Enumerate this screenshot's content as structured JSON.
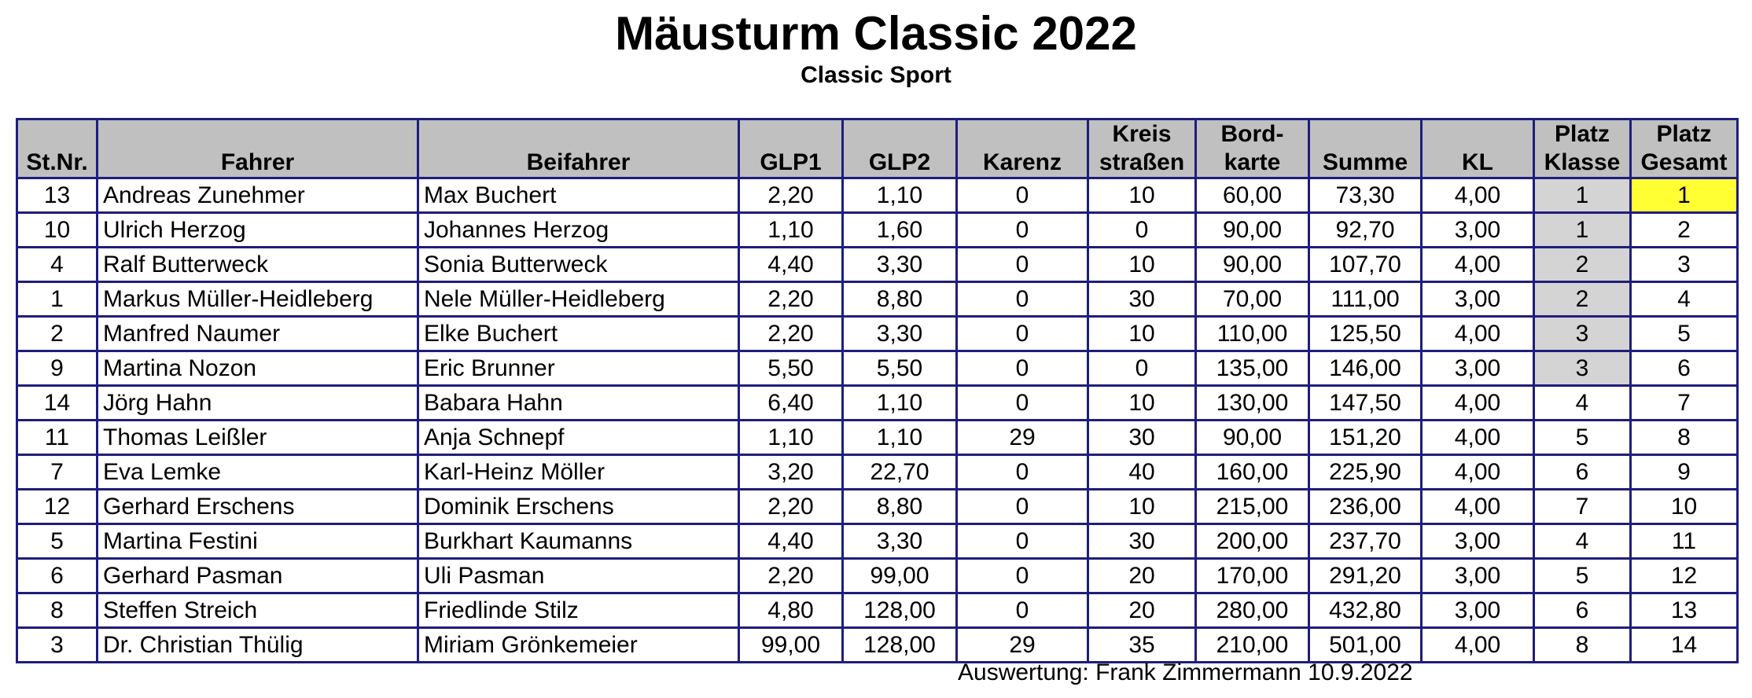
{
  "title": "Mäusturm Classic 2022",
  "subtitle": "Classic Sport",
  "headers": {
    "stnr": "St.Nr.",
    "fahrer": "Fahrer",
    "beifahrer": "Beifahrer",
    "glp1": "GLP1",
    "glp2": "GLP2",
    "karenz": "Karenz",
    "kreis_1": "Kreis",
    "kreis_2": "straßen",
    "bord_1": "Bord-",
    "bord_2": "karte",
    "summe": "Summe",
    "kl": "KL",
    "platz_klasse_1": "Platz",
    "platz_klasse_2": "Klasse",
    "platz_gesamt_1": "Platz",
    "platz_gesamt_2": "Gesamt"
  },
  "rows": [
    {
      "stnr": "13",
      "fahrer": "Andreas Zunehmer",
      "beifahrer": "Max Buchert",
      "glp1": "2,20",
      "glp2": "1,10",
      "karenz": "0",
      "kreis": "10",
      "bordkarte": "60,00",
      "summe": "73,30",
      "kl": "4,00",
      "platz_klasse": "1",
      "platz_gesamt": "1"
    },
    {
      "stnr": "10",
      "fahrer": "Ulrich Herzog",
      "beifahrer": "Johannes Herzog",
      "glp1": "1,10",
      "glp2": "1,60",
      "karenz": "0",
      "kreis": "0",
      "bordkarte": "90,00",
      "summe": "92,70",
      "kl": "3,00",
      "platz_klasse": "1",
      "platz_gesamt": "2"
    },
    {
      "stnr": "4",
      "fahrer": "Ralf Butterweck",
      "beifahrer": "Sonia Butterweck",
      "glp1": "4,40",
      "glp2": "3,30",
      "karenz": "0",
      "kreis": "10",
      "bordkarte": "90,00",
      "summe": "107,70",
      "kl": "4,00",
      "platz_klasse": "2",
      "platz_gesamt": "3"
    },
    {
      "stnr": "1",
      "fahrer": "Markus Müller-Heidleberg",
      "beifahrer": "Nele Müller-Heidleberg",
      "glp1": "2,20",
      "glp2": "8,80",
      "karenz": "0",
      "kreis": "30",
      "bordkarte": "70,00",
      "summe": "111,00",
      "kl": "3,00",
      "platz_klasse": "2",
      "platz_gesamt": "4"
    },
    {
      "stnr": "2",
      "fahrer": "Manfred Naumer",
      "beifahrer": "Elke Buchert",
      "glp1": "2,20",
      "glp2": "3,30",
      "karenz": "0",
      "kreis": "10",
      "bordkarte": "110,00",
      "summe": "125,50",
      "kl": "4,00",
      "platz_klasse": "3",
      "platz_gesamt": "5"
    },
    {
      "stnr": "9",
      "fahrer": "Martina Nozon",
      "beifahrer": "Eric Brunner",
      "glp1": "5,50",
      "glp2": "5,50",
      "karenz": "0",
      "kreis": "0",
      "bordkarte": "135,00",
      "summe": "146,00",
      "kl": "3,00",
      "platz_klasse": "3",
      "platz_gesamt": "6"
    },
    {
      "stnr": "14",
      "fahrer": "Jörg Hahn",
      "beifahrer": "Babara Hahn",
      "glp1": "6,40",
      "glp2": "1,10",
      "karenz": "0",
      "kreis": "10",
      "bordkarte": "130,00",
      "summe": "147,50",
      "kl": "4,00",
      "platz_klasse": "4",
      "platz_gesamt": "7"
    },
    {
      "stnr": "11",
      "fahrer": "Thomas Leißler",
      "beifahrer": "Anja Schnepf",
      "glp1": "1,10",
      "glp2": "1,10",
      "karenz": "29",
      "kreis": "30",
      "bordkarte": "90,00",
      "summe": "151,20",
      "kl": "4,00",
      "platz_klasse": "5",
      "platz_gesamt": "8"
    },
    {
      "stnr": "7",
      "fahrer": "Eva Lemke",
      "beifahrer": "Karl-Heinz Möller",
      "glp1": "3,20",
      "glp2": "22,70",
      "karenz": "0",
      "kreis": "40",
      "bordkarte": "160,00",
      "summe": "225,90",
      "kl": "4,00",
      "platz_klasse": "6",
      "platz_gesamt": "9"
    },
    {
      "stnr": "12",
      "fahrer": "Gerhard Erschens",
      "beifahrer": "Dominik Erschens",
      "glp1": "2,20",
      "glp2": "8,80",
      "karenz": "0",
      "kreis": "10",
      "bordkarte": "215,00",
      "summe": "236,00",
      "kl": "4,00",
      "platz_klasse": "7",
      "platz_gesamt": "10"
    },
    {
      "stnr": "5",
      "fahrer": "Martina Festini",
      "beifahrer": "Burkhart Kaumanns",
      "glp1": "4,40",
      "glp2": "3,30",
      "karenz": "0",
      "kreis": "30",
      "bordkarte": "200,00",
      "summe": "237,70",
      "kl": "3,00",
      "platz_klasse": "4",
      "platz_gesamt": "11"
    },
    {
      "stnr": "6",
      "fahrer": "Gerhard Pasman",
      "beifahrer": "Uli Pasman",
      "glp1": "2,20",
      "glp2": "99,00",
      "karenz": "0",
      "kreis": "20",
      "bordkarte": "170,00",
      "summe": "291,20",
      "kl": "3,00",
      "platz_klasse": "5",
      "platz_gesamt": "12"
    },
    {
      "stnr": "8",
      "fahrer": "Steffen Streich",
      "beifahrer": "Friedlinde Stilz",
      "glp1": "4,80",
      "glp2": "128,00",
      "karenz": "0",
      "kreis": "20",
      "bordkarte": "280,00",
      "summe": "432,80",
      "kl": "3,00",
      "platz_klasse": "6",
      "platz_gesamt": "13"
    },
    {
      "stnr": "3",
      "fahrer": "Dr. Christian Thülig",
      "beifahrer": "Miriam Grönkemeier",
      "glp1": "99,00",
      "glp2": "128,00",
      "karenz": "29",
      "kreis": "35",
      "bordkarte": "210,00",
      "summe": "501,00",
      "kl": "4,00",
      "platz_klasse": "8",
      "platz_gesamt": "14"
    }
  ],
  "footer": "Auswertung: Frank Zimmermann 10.9.2022",
  "colors": {
    "header_bg": "#c0c0c0",
    "border": "#1e1e7c",
    "klasse_highlight": "#d4d4d4",
    "winner_highlight": "#ffff33"
  }
}
